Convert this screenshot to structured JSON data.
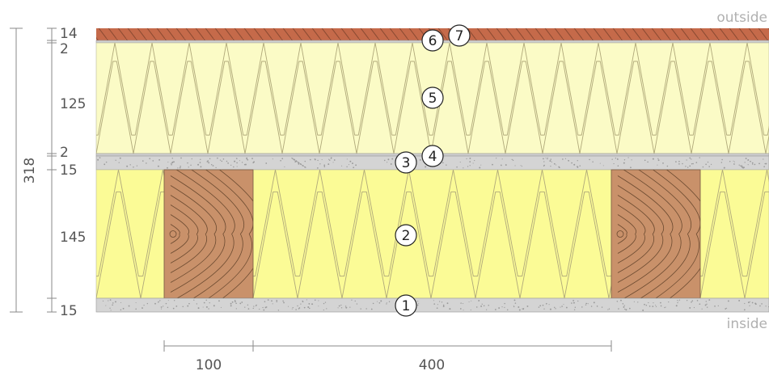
{
  "labels": {
    "outside": "outside",
    "inside": "inside"
  },
  "total_thickness": "318",
  "layer_thicknesses": [
    "14",
    "2",
    "125",
    "2",
    "15",
    "145",
    "15"
  ],
  "bottom_dims": [
    "100",
    "400"
  ],
  "markers": [
    "1",
    "2",
    "3",
    "4",
    "5",
    "6",
    "7"
  ],
  "colors": {
    "cladding": "#c56a4a",
    "insulation_upper": "#fbfbc6",
    "insulation_lower": "#fbfb96",
    "board": "#d4d4d4",
    "timber": "#c9916a",
    "line": "#8a8a8a"
  }
}
